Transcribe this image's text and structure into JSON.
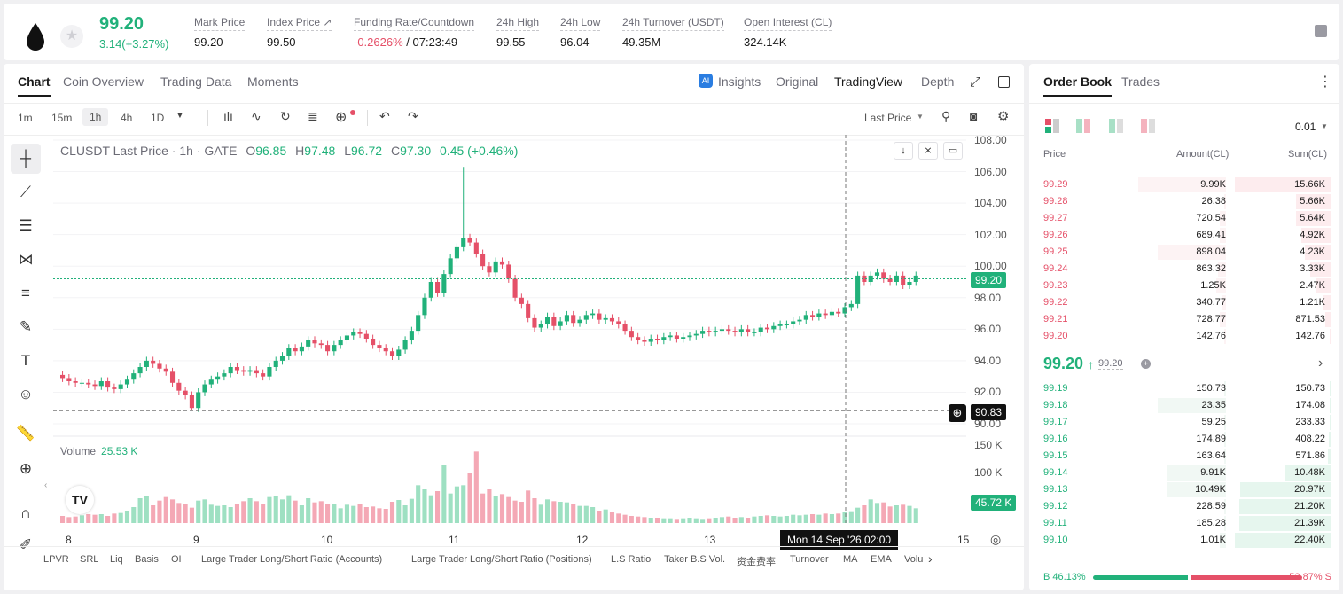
{
  "header": {
    "last_price": "99.20",
    "change": "3.14(+3.27%)",
    "stats": [
      {
        "label": "Mark Price",
        "value": "99.20"
      },
      {
        "label": "Index Price ↗",
        "value": "99.50"
      },
      {
        "label": "Funding Rate/Countdown",
        "value": "-0.2626%",
        "value2": "/ 07:23:49"
      },
      {
        "label": "24h High",
        "value": "99.55"
      },
      {
        "label": "24h Low",
        "value": "96.04"
      },
      {
        "label": "24h Turnover (USDT)",
        "value": "49.35M"
      },
      {
        "label": "Open Interest (CL)",
        "value": "324.14K"
      }
    ]
  },
  "chart_tabs": [
    "Chart",
    "Coin Overview",
    "Trading Data",
    "Moments"
  ],
  "view_tabs": {
    "insights": "Insights",
    "original": "Original",
    "tradingview": "TradingView",
    "depth": "Depth"
  },
  "timeframes": [
    "1m",
    "15m",
    "1h",
    "4h",
    "1D"
  ],
  "price_type": "Last Price",
  "legend": {
    "symbol": "CLUSDT Last Price · 1h · GATE",
    "o_label": "O",
    "o": "96.85",
    "h_label": "H",
    "h": "97.48",
    "l_label": "L",
    "l": "96.72",
    "c_label": "C",
    "c": "97.30",
    "change": "0.45 (+0.46%)"
  },
  "volume": {
    "label": "Volume",
    "value": "25.53 K"
  },
  "y_ticks": [
    "108.00",
    "106.00",
    "104.00",
    "102.00",
    "100.00",
    "98.00",
    "96.00",
    "94.00",
    "92.00",
    "90.00"
  ],
  "vol_ticks": [
    "150 K",
    "100 K"
  ],
  "price_tag": "99.20",
  "crosshair_tag": "90.83",
  "vol_tag": "45.72 K",
  "x_ticks": [
    "8",
    "9",
    "10",
    "11",
    "12",
    "13",
    "15"
  ],
  "crosshair_time": "Mon 14 Sep '26   02:00",
  "indicators": [
    "LPVR",
    "SRL",
    "Liq",
    "Basis",
    "OI",
    "Large Trader Long/Short Ratio (Accounts)",
    "Large Trader Long/Short Ratio (Positions)",
    "L.S Ratio",
    "Taker B.S Vol.",
    "资金费率",
    "Turnover",
    "MA",
    "EMA",
    "Volu"
  ],
  "chart_data": {
    "type": "candlestick",
    "symbol": "CLUSDT",
    "interval": "1h",
    "ylim": [
      90,
      108
    ],
    "closes": [
      92.9,
      92.7,
      92.6,
      92.6,
      92.5,
      92.4,
      92.7,
      92.3,
      92.2,
      92.5,
      92.8,
      93.2,
      93.6,
      94.0,
      93.8,
      93.5,
      93.3,
      92.6,
      92.1,
      91.8,
      91.0,
      92.0,
      92.5,
      92.8,
      93.0,
      93.2,
      93.6,
      93.4,
      93.3,
      93.4,
      93.2,
      93.0,
      93.6,
      94.0,
      94.3,
      94.8,
      94.6,
      94.9,
      95.3,
      95.1,
      95.0,
      94.6,
      95.0,
      95.3,
      95.6,
      95.8,
      95.7,
      95.4,
      95.0,
      94.8,
      94.6,
      94.3,
      94.7,
      95.3,
      95.9,
      96.9,
      98.0,
      99.0,
      98.3,
      99.5,
      100.5,
      101.2,
      101.8,
      101.5,
      100.8,
      100.0,
      99.6,
      100.3,
      100.1,
      99.2,
      98.0,
      97.6,
      96.7,
      96.1,
      96.3,
      96.8,
      96.2,
      96.5,
      96.9,
      96.4,
      96.6,
      96.9,
      97.0,
      96.6,
      96.7,
      96.5,
      96.3,
      95.9,
      95.5,
      95.3,
      95.2,
      95.4,
      95.3,
      95.5,
      95.6,
      95.4,
      95.5,
      95.6,
      95.7,
      95.9,
      95.8,
      95.9,
      96.0,
      95.9,
      95.8,
      96.0,
      95.8,
      95.8,
      96.1,
      96.0,
      96.2,
      96.3,
      96.3,
      96.5,
      96.6,
      96.9,
      96.8,
      97.0,
      96.9,
      97.1,
      97.0,
      97.4,
      97.6,
      99.4,
      99.0,
      99.4,
      99.6,
      99.2,
      99.0,
      99.4,
      98.8,
      99.0,
      99.4
    ],
    "volumes_k": [
      12,
      10,
      11,
      13,
      15,
      14,
      15,
      12,
      16,
      17,
      21,
      27,
      42,
      45,
      30,
      38,
      44,
      40,
      34,
      32,
      26,
      38,
      40,
      31,
      29,
      30,
      27,
      32,
      37,
      42,
      37,
      33,
      44,
      45,
      40,
      47,
      38,
      30,
      42,
      35,
      37,
      33,
      32,
      25,
      31,
      29,
      33,
      27,
      28,
      25,
      24,
      36,
      39,
      30,
      41,
      64,
      57,
      47,
      54,
      98,
      50,
      62,
      64,
      84,
      121,
      50,
      57,
      45,
      49,
      44,
      38,
      36,
      55,
      42,
      31,
      40,
      37,
      36,
      35,
      32,
      29,
      29,
      27,
      21,
      23,
      18,
      16,
      14,
      12,
      11,
      10,
      9,
      9,
      8,
      8,
      7,
      8,
      9,
      8,
      7,
      8,
      9,
      10,
      11,
      9,
      10,
      9,
      11,
      12,
      13,
      12,
      11,
      12,
      14,
      13,
      14,
      15,
      14,
      16,
      15,
      16,
      18,
      20,
      26,
      30,
      40,
      34,
      35,
      28,
      30,
      31,
      29,
      25,
      29,
      44
    ]
  },
  "orderbook": {
    "tabs": [
      "Order Book",
      "Trades"
    ],
    "tick": "0.01",
    "headers": [
      "Price",
      "Amount(CL)",
      "Sum(CL)"
    ],
    "asks": [
      {
        "price": "99.29",
        "amount": "9.99K",
        "sum": "15.66K",
        "amt_frac": 0.45,
        "sum_frac": 1.0
      },
      {
        "price": "99.28",
        "amount": "26.38",
        "sum": "5.66K",
        "amt_frac": 0.01,
        "sum_frac": 0.36
      },
      {
        "price": "99.27",
        "amount": "720.54",
        "sum": "5.64K",
        "amt_frac": 0.03,
        "sum_frac": 0.36
      },
      {
        "price": "99.26",
        "amount": "689.41",
        "sum": "4.92K",
        "amt_frac": 0.03,
        "sum_frac": 0.31
      },
      {
        "price": "99.25",
        "amount": "898.04",
        "sum": "4.23K",
        "amt_frac": 0.35,
        "sum_frac": 0.27
      },
      {
        "price": "99.24",
        "amount": "863.32",
        "sum": "3.33K",
        "amt_frac": 0.04,
        "sum_frac": 0.21
      },
      {
        "price": "99.23",
        "amount": "1.25K",
        "sum": "2.47K",
        "amt_frac": 0.05,
        "sum_frac": 0.16
      },
      {
        "price": "99.22",
        "amount": "340.77",
        "sum": "1.21K",
        "amt_frac": 0.02,
        "sum_frac": 0.08
      },
      {
        "price": "99.21",
        "amount": "728.77",
        "sum": "871.53",
        "amt_frac": 0.03,
        "sum_frac": 0.06
      },
      {
        "price": "99.20",
        "amount": "142.76",
        "sum": "142.76",
        "amt_frac": 0.01,
        "sum_frac": 0.01
      }
    ],
    "mid": {
      "price": "99.20",
      "arrow": "↑",
      "sub": "99.20"
    },
    "bids": [
      {
        "price": "99.19",
        "amount": "150.73",
        "sum": "150.73",
        "amt_frac": 0.01,
        "sum_frac": 0.01
      },
      {
        "price": "99.18",
        "amount": "23.35",
        "sum": "174.08",
        "amt_frac": 0.35,
        "sum_frac": 0.01
      },
      {
        "price": "99.17",
        "amount": "59.25",
        "sum": "233.33",
        "amt_frac": 0.01,
        "sum_frac": 0.01
      },
      {
        "price": "99.16",
        "amount": "174.89",
        "sum": "408.22",
        "amt_frac": 0.01,
        "sum_frac": 0.02
      },
      {
        "price": "99.15",
        "amount": "163.64",
        "sum": "571.86",
        "amt_frac": 0.01,
        "sum_frac": 0.03
      },
      {
        "price": "99.14",
        "amount": "9.91K",
        "sum": "10.48K",
        "amt_frac": 0.3,
        "sum_frac": 0.47
      },
      {
        "price": "99.13",
        "amount": "10.49K",
        "sum": "20.97K",
        "amt_frac": 0.3,
        "sum_frac": 0.94
      },
      {
        "price": "99.12",
        "amount": "228.59",
        "sum": "21.20K",
        "amt_frac": 0.01,
        "sum_frac": 0.95
      },
      {
        "price": "99.11",
        "amount": "185.28",
        "sum": "21.39K",
        "amt_frac": 0.01,
        "sum_frac": 0.95
      },
      {
        "price": "99.10",
        "amount": "1.01K",
        "sum": "22.40K",
        "amt_frac": 0.03,
        "sum_frac": 1.0
      }
    ],
    "buy_ratio": "B 46.13%",
    "sell_ratio": "53.87% S",
    "buy_frac": 0.4613
  },
  "colors": {
    "up": "#21b17a",
    "down": "#e55068"
  }
}
